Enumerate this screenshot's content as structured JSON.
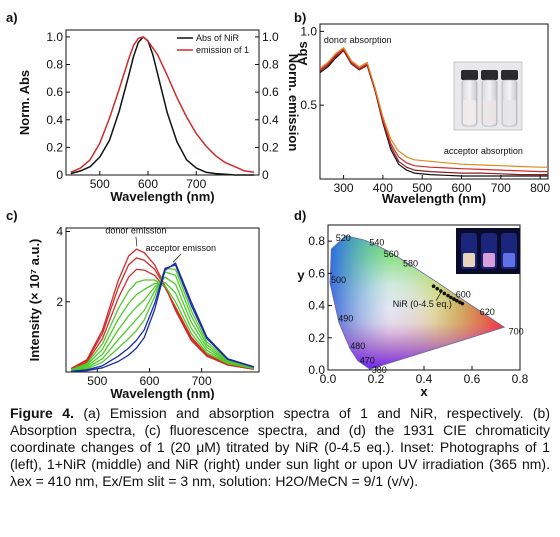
{
  "colors": {
    "black": "#111111",
    "red": "#d32a2a",
    "green": "#4ecb2a",
    "blue": "#1b2aa8",
    "orange": "#e08a20",
    "darkred": "#8a1f1f"
  },
  "chart_data": [
    {
      "panel": "a)",
      "type": "line",
      "xlabel": "Wavelength (nm)",
      "ylabel": "Norm. Abs",
      "y2label": "Norm. emission",
      "xlim": [
        430,
        830
      ],
      "ylim": [
        0,
        1.05
      ],
      "xticks": [
        500,
        600,
        700
      ],
      "yticks": [
        0,
        0.2,
        0.4,
        0.6,
        0.8,
        1.0
      ],
      "xtick_labels": [
        "500",
        "600",
        "700"
      ],
      "ytick_labels": [
        "0",
        "0.2",
        "0.4",
        "0.6",
        "0.8",
        "1.0"
      ],
      "y2tick_labels": [
        "0",
        "0.2",
        "0.4",
        "0.6",
        "0.8",
        "1.0"
      ],
      "legend": "top-right",
      "series": [
        {
          "name": "Abs of NiR",
          "color": "#111111",
          "x": [
            440,
            460,
            480,
            500,
            520,
            540,
            560,
            570,
            580,
            590,
            600,
            610,
            620,
            640,
            660,
            680,
            700,
            720,
            740,
            760,
            780,
            820
          ],
          "y": [
            0.01,
            0.03,
            0.06,
            0.13,
            0.25,
            0.46,
            0.72,
            0.86,
            0.96,
            1.0,
            0.97,
            0.87,
            0.73,
            0.45,
            0.24,
            0.11,
            0.05,
            0.02,
            0.01,
            0.005,
            0.0,
            0.0
          ]
        },
        {
          "name": "emission of 1",
          "color": "#d32a2a",
          "x": [
            440,
            460,
            480,
            500,
            520,
            540,
            560,
            570,
            580,
            590,
            600,
            620,
            640,
            660,
            680,
            700,
            720,
            740,
            760,
            780,
            800,
            820
          ],
          "y": [
            0.02,
            0.05,
            0.11,
            0.23,
            0.41,
            0.62,
            0.84,
            0.94,
            0.99,
            1.0,
            0.97,
            0.87,
            0.72,
            0.56,
            0.42,
            0.3,
            0.21,
            0.14,
            0.09,
            0.06,
            0.03,
            0.02
          ]
        }
      ]
    },
    {
      "panel": "b)",
      "type": "line",
      "xlabel": "Wavelength (nm)",
      "ylabel": "Abs",
      "xlim": [
        240,
        820
      ],
      "ylim": [
        0,
        1.05
      ],
      "xticks": [
        300,
        400,
        500,
        600,
        700,
        800
      ],
      "yticks": [
        0.5,
        1.0
      ],
      "xtick_labels": [
        "300",
        "400",
        "500",
        "600",
        "700",
        "800"
      ],
      "ytick_labels": [
        "0.5",
        "1.0"
      ],
      "annotations": [
        "donor absorption",
        "acceptor absorption"
      ],
      "series": [
        {
          "color": "#111111",
          "x": [
            240,
            260,
            280,
            300,
            320,
            340,
            360,
            380,
            400,
            420,
            440,
            460,
            480,
            520,
            560,
            600,
            650,
            700,
            750,
            800,
            820
          ],
          "y": [
            0.72,
            0.76,
            0.82,
            0.87,
            0.78,
            0.74,
            0.77,
            0.6,
            0.38,
            0.2,
            0.1,
            0.06,
            0.04,
            0.03,
            0.025,
            0.02,
            0.02,
            0.02,
            0.02,
            0.02,
            0.02
          ]
        },
        {
          "color": "#8a1f1f",
          "x": [
            240,
            260,
            280,
            300,
            320,
            340,
            360,
            380,
            400,
            420,
            440,
            460,
            480,
            520,
            560,
            600,
            650,
            700,
            750,
            800,
            820
          ],
          "y": [
            0.73,
            0.77,
            0.83,
            0.87,
            0.78,
            0.74,
            0.77,
            0.6,
            0.39,
            0.22,
            0.12,
            0.08,
            0.06,
            0.05,
            0.045,
            0.04,
            0.04,
            0.035,
            0.03,
            0.03,
            0.03
          ]
        },
        {
          "color": "#d32a2a",
          "x": [
            240,
            260,
            280,
            300,
            320,
            340,
            360,
            380,
            400,
            420,
            440,
            460,
            480,
            520,
            560,
            600,
            650,
            700,
            750,
            800,
            820
          ],
          "y": [
            0.74,
            0.78,
            0.84,
            0.88,
            0.79,
            0.75,
            0.78,
            0.61,
            0.4,
            0.24,
            0.15,
            0.11,
            0.09,
            0.08,
            0.075,
            0.07,
            0.065,
            0.06,
            0.055,
            0.05,
            0.05
          ]
        },
        {
          "color": "#e08a20",
          "x": [
            240,
            260,
            280,
            300,
            320,
            340,
            360,
            380,
            400,
            420,
            440,
            460,
            480,
            520,
            560,
            600,
            650,
            700,
            750,
            800,
            820
          ],
          "y": [
            0.75,
            0.79,
            0.85,
            0.89,
            0.8,
            0.76,
            0.79,
            0.62,
            0.42,
            0.27,
            0.19,
            0.15,
            0.13,
            0.12,
            0.11,
            0.1,
            0.095,
            0.09,
            0.085,
            0.08,
            0.08
          ]
        }
      ]
    },
    {
      "panel": "c)",
      "type": "line",
      "xlabel": "Wavelength (nm)",
      "ylabel": "Intensity (× 10⁷ a.u.)",
      "xlim": [
        440,
        810
      ],
      "ylim": [
        0,
        4.1
      ],
      "xticks": [
        500,
        600,
        700
      ],
      "yticks": [
        2,
        4
      ],
      "xtick_labels": [
        "500",
        "600",
        "700"
      ],
      "ytick_labels": [
        "2",
        "4"
      ],
      "annotations": [
        "donor emission",
        "acceptor emisson"
      ],
      "series": [
        {
          "color": "#d32a2a",
          "x": [
            450,
            480,
            510,
            540,
            560,
            575,
            590,
            610,
            630,
            650,
            680,
            710,
            750,
            800
          ],
          "y": [
            0.1,
            0.35,
            1.2,
            2.6,
            3.3,
            3.5,
            3.4,
            3.05,
            2.45,
            1.75,
            0.9,
            0.45,
            0.2,
            0.08
          ]
        },
        {
          "color": "#d32a2a",
          "x": [
            450,
            480,
            510,
            540,
            560,
            575,
            590,
            610,
            630,
            650,
            680,
            710,
            750,
            800
          ],
          "y": [
            0.09,
            0.32,
            1.1,
            2.4,
            3.05,
            3.25,
            3.18,
            2.92,
            2.42,
            1.8,
            0.95,
            0.48,
            0.2,
            0.08
          ]
        },
        {
          "color": "#d32a2a",
          "x": [
            450,
            480,
            510,
            540,
            560,
            575,
            590,
            610,
            630,
            650,
            680,
            710,
            750,
            800
          ],
          "y": [
            0.08,
            0.28,
            0.95,
            2.1,
            2.7,
            2.92,
            2.9,
            2.75,
            2.4,
            1.85,
            1.0,
            0.5,
            0.22,
            0.09
          ]
        },
        {
          "color": "#4ecb2a",
          "x": [
            450,
            480,
            510,
            540,
            560,
            575,
            590,
            610,
            630,
            650,
            680,
            710,
            750,
            800
          ],
          "y": [
            0.07,
            0.24,
            0.8,
            1.8,
            2.3,
            2.55,
            2.62,
            2.62,
            2.45,
            2.0,
            1.1,
            0.55,
            0.24,
            0.1
          ]
        },
        {
          "color": "#4ecb2a",
          "x": [
            450,
            480,
            510,
            540,
            560,
            575,
            590,
            610,
            630,
            650,
            680,
            710,
            750,
            800
          ],
          "y": [
            0.06,
            0.2,
            0.65,
            1.5,
            1.95,
            2.2,
            2.35,
            2.52,
            2.55,
            2.25,
            1.25,
            0.62,
            0.26,
            0.1
          ]
        },
        {
          "color": "#4ecb2a",
          "x": [
            450,
            480,
            510,
            540,
            560,
            575,
            590,
            610,
            630,
            650,
            680,
            710,
            750,
            800
          ],
          "y": [
            0.05,
            0.16,
            0.5,
            1.2,
            1.6,
            1.85,
            2.05,
            2.42,
            2.7,
            2.5,
            1.42,
            0.7,
            0.28,
            0.11
          ]
        },
        {
          "color": "#4ecb2a",
          "x": [
            450,
            480,
            510,
            540,
            560,
            575,
            590,
            610,
            630,
            650,
            680,
            710,
            750,
            800
          ],
          "y": [
            0.04,
            0.12,
            0.38,
            0.92,
            1.25,
            1.5,
            1.75,
            2.3,
            2.85,
            2.75,
            1.6,
            0.78,
            0.3,
            0.12
          ]
        },
        {
          "color": "#4ecb2a",
          "x": [
            450,
            480,
            510,
            540,
            560,
            575,
            590,
            610,
            630,
            650,
            680,
            710,
            750,
            800
          ],
          "y": [
            0.03,
            0.09,
            0.28,
            0.68,
            0.95,
            1.18,
            1.48,
            2.15,
            2.95,
            2.92,
            1.75,
            0.86,
            0.33,
            0.13
          ]
        },
        {
          "color": "#1b2aa8",
          "x": [
            450,
            480,
            510,
            540,
            560,
            575,
            590,
            610,
            630,
            650,
            680,
            710,
            750,
            800
          ],
          "y": [
            0.02,
            0.06,
            0.18,
            0.45,
            0.68,
            0.9,
            1.2,
            1.95,
            2.95,
            3.05,
            1.9,
            0.95,
            0.36,
            0.14
          ]
        },
        {
          "color": "#1b2aa8",
          "x": [
            450,
            480,
            510,
            540,
            560,
            575,
            590,
            610,
            630,
            650,
            680,
            710,
            750,
            800
          ],
          "y": [
            0.02,
            0.04,
            0.12,
            0.3,
            0.48,
            0.68,
            0.98,
            1.78,
            2.9,
            3.1,
            2.0,
            1.0,
            0.38,
            0.15
          ]
        }
      ]
    },
    {
      "panel": "d)",
      "type": "scatter",
      "xlabel": "x",
      "ylabel": "y",
      "xlim": [
        0,
        0.8
      ],
      "ylim": [
        0,
        0.9
      ],
      "xticks": [
        0.0,
        0.2,
        0.4,
        0.6,
        0.8
      ],
      "yticks": [
        0.0,
        0.2,
        0.4,
        0.6,
        0.8
      ],
      "xtick_labels": [
        "0.0",
        "0.2",
        "0.4",
        "0.6",
        "0.8"
      ],
      "ytick_labels": [
        "0.0",
        "0.2",
        "0.4",
        "0.6",
        "0.8"
      ],
      "annotation": "NiR (0-4.5 eq.)",
      "locus_labels": [
        "380",
        "470",
        "480",
        "490",
        "500",
        "520",
        "540",
        "560",
        "580",
        "600",
        "620",
        "700"
      ],
      "locus": [
        [
          0.1741,
          0.005
        ],
        [
          0.1241,
          0.0578
        ],
        [
          0.0913,
          0.1327
        ],
        [
          0.0454,
          0.295
        ],
        [
          0.0082,
          0.5384
        ],
        [
          0.0139,
          0.7502
        ],
        [
          0.0743,
          0.8338
        ],
        [
          0.1547,
          0.8059
        ],
        [
          0.2296,
          0.7543
        ],
        [
          0.3016,
          0.6923
        ],
        [
          0.3731,
          0.6245
        ],
        [
          0.4441,
          0.5547
        ],
        [
          0.5125,
          0.4866
        ],
        [
          0.5752,
          0.4242
        ],
        [
          0.627,
          0.3725
        ],
        [
          0.6658,
          0.334
        ],
        [
          0.6915,
          0.3083
        ],
        [
          0.7347,
          0.2653
        ]
      ],
      "points": [
        [
          0.44,
          0.52
        ],
        [
          0.455,
          0.505
        ],
        [
          0.47,
          0.49
        ],
        [
          0.485,
          0.475
        ],
        [
          0.5,
          0.462
        ],
        [
          0.512,
          0.45
        ],
        [
          0.525,
          0.44
        ],
        [
          0.537,
          0.43
        ],
        [
          0.55,
          0.42
        ],
        [
          0.56,
          0.412
        ]
      ]
    }
  ],
  "caption": {
    "title": "Figure 4.",
    "text": "(a) Emission and absorption spectra of 1 and NiR, respectively. (b) Absorption spectra, (c) fluorescence spectra, and (d) the 1931 CIE chromaticity coordinate changes of 1 (20 μM) titrated by NiR (0-4.5 eq.). Inset: Photographs of 1 (left), 1+NiR (middle) and NiR (right) under sun light or upon UV irradiation (365 nm). λex = 410 nm, Ex/Em slit = 3 nm, solution: H2O/MeCN = 9/1 (v/v)."
  }
}
